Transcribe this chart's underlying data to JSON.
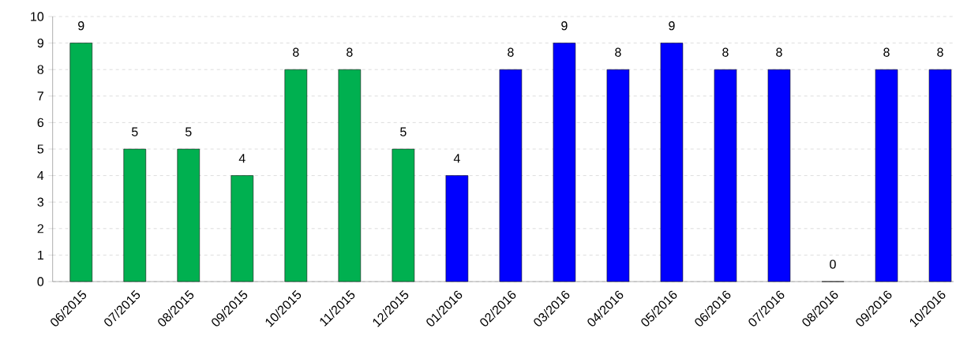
{
  "chart_data": {
    "type": "bar",
    "categories": [
      "06/2015",
      "07/2015",
      "08/2015",
      "09/2015",
      "10/2015",
      "11/2015",
      "12/2015",
      "01/2016",
      "02/2016",
      "03/2016",
      "04/2016",
      "05/2016",
      "06/2016",
      "07/2016",
      "08/2016",
      "09/2016",
      "10/2016"
    ],
    "values": [
      9,
      5,
      5,
      4,
      8,
      8,
      5,
      4,
      8,
      9,
      8,
      9,
      8,
      8,
      0,
      8,
      8
    ],
    "colors": [
      "#00b050",
      "#00b050",
      "#00b050",
      "#00b050",
      "#00b050",
      "#00b050",
      "#00b050",
      "#0000ff",
      "#0000ff",
      "#0000ff",
      "#0000ff",
      "#0000ff",
      "#0000ff",
      "#0000ff",
      "#0000ff",
      "#0000ff",
      "#0000ff"
    ],
    "ylim": [
      0,
      10
    ],
    "yticks": [
      0,
      1,
      2,
      3,
      4,
      5,
      6,
      7,
      8,
      9,
      10
    ],
    "grid": "y",
    "data_labels": true
  }
}
